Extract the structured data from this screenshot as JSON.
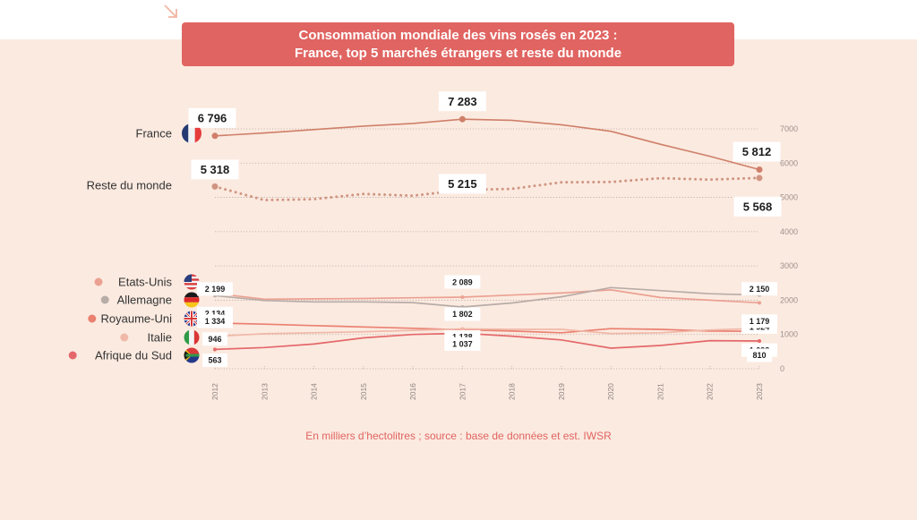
{
  "title": {
    "line1": "Consommation mondiale des vins rosés en 2023 :",
    "line2": "France, top 5 marchés étrangers et reste du monde"
  },
  "source_note": "En milliers d’hectolitres ; source : base de données et est. IWSR",
  "colors": {
    "panel_bg": "#fbeae0",
    "title_bg": "#e06461",
    "france": "#cf7f69",
    "reste": "#d09582",
    "etats_unis": "#eba192",
    "allemagne": "#b8aca7",
    "royaume_uni": "#ea8070",
    "italie": "#f0b8a8",
    "afrique_du_sud": "#e4686a"
  },
  "chart_data": {
    "type": "line",
    "title": "Consommation mondiale des vins rosés en 2023 : France, top 5 marchés étrangers et reste du monde",
    "xlabel": "",
    "ylabel": "En milliers d’hectolitres",
    "x": [
      "2012",
      "2013",
      "2014",
      "2015",
      "2016",
      "2017",
      "2018",
      "2019",
      "2020",
      "2021",
      "2022",
      "2023"
    ],
    "yticks": [
      "0",
      "1000",
      "2000",
      "3000",
      "4000",
      "5000",
      "6000",
      "7000"
    ],
    "ylim": [
      0,
      7000
    ],
    "grid": true,
    "legend": "left",
    "series": [
      {
        "key": "france",
        "name": "France",
        "flag": "france-flag",
        "style": "solid",
        "marker": "dot",
        "values": [
          6796,
          6880,
          6980,
          7080,
          7160,
          7283,
          7250,
          7120,
          6930,
          6550,
          6200,
          5812
        ],
        "labels": {
          "2012": "6 796",
          "2017": "7 283",
          "2023": "5 812"
        }
      },
      {
        "key": "reste",
        "name": "Reste du monde",
        "flag": null,
        "style": "dotted",
        "marker": "dot",
        "values": [
          5318,
          4920,
          4950,
          5100,
          5050,
          5215,
          5250,
          5440,
          5450,
          5560,
          5520,
          5568
        ],
        "labels": {
          "2012": "5 318",
          "2017": "5 215",
          "2023": "5 568"
        }
      },
      {
        "key": "etats_unis",
        "name": "Etats-Unis",
        "flag": "usa-flag",
        "style": "solid",
        "marker": "small",
        "values": [
          2199,
          2030,
          2040,
          2050,
          2070,
          2089,
          2150,
          2210,
          2300,
          2080,
          2000,
          1924
        ],
        "labels": {
          "2012": "2 199",
          "2017": "2 089",
          "2023": "1 924"
        }
      },
      {
        "key": "allemagne",
        "name": "Allemagne",
        "flag": "germany-flag",
        "style": "solid",
        "marker": "small",
        "values": [
          2134,
          1990,
          1950,
          1950,
          1930,
          1802,
          1920,
          2100,
          2370,
          2280,
          2190,
          2150
        ],
        "labels": {
          "2012": "2 134",
          "2017": "1 802",
          "2023": "2 150"
        }
      },
      {
        "key": "royaume_uni",
        "name": "Royaume-Uni",
        "flag": "uk-flag",
        "style": "solid",
        "marker": "small",
        "values": [
          1334,
          1300,
          1260,
          1220,
          1180,
          1138,
          1100,
          1050,
          1170,
          1150,
          1100,
          1093
        ],
        "labels": {
          "2012": "1 334",
          "2017": "1 138",
          "2023": "1 093"
        }
      },
      {
        "key": "italie",
        "name": "Italie",
        "flag": "italy-flag",
        "style": "solid",
        "marker": "small",
        "values": [
          946,
          1020,
          1050,
          1080,
          1120,
          1162,
          1150,
          1150,
          1030,
          1050,
          1130,
          1179
        ],
        "labels": {
          "2012": "946",
          "2017": "1 162",
          "2023": "1 179"
        }
      },
      {
        "key": "afrique_du_sud",
        "name": "Afrique du Sud",
        "flag": "south-africa-flag",
        "style": "solid",
        "marker": "small",
        "values": [
          563,
          620,
          720,
          900,
          1000,
          1037,
          950,
          840,
          600,
          680,
          820,
          810
        ],
        "labels": {
          "2012": "563",
          "2017": "1 037",
          "2023": "810"
        }
      }
    ]
  }
}
